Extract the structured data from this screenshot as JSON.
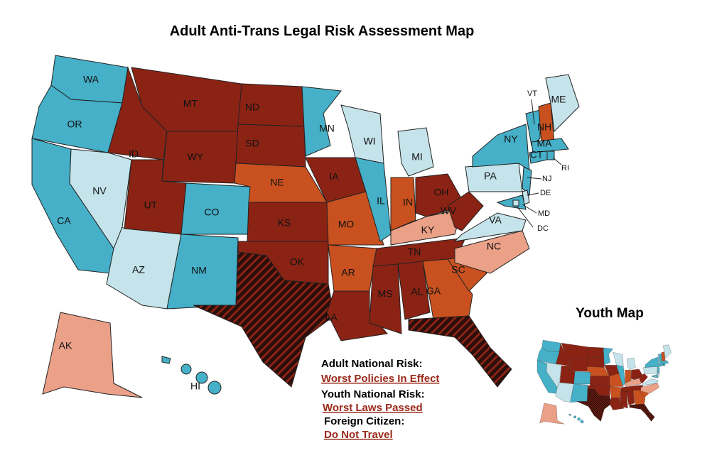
{
  "title": "Adult Anti-Trans Legal Risk Assessment Map",
  "states": [
    {
      "label": "WA",
      "color": "#45b0c8"
    },
    {
      "label": "OR",
      "color": "#45b0c8"
    },
    {
      "label": "CA",
      "color": "#45b0c8"
    },
    {
      "label": "NV",
      "color": "#c5e3ea"
    },
    {
      "label": "ID",
      "color": "#8b2315"
    },
    {
      "label": "MT",
      "color": "#8b2315"
    },
    {
      "label": "WY",
      "color": "#8b2315"
    },
    {
      "label": "UT",
      "color": "#8b2315"
    },
    {
      "label": "CO",
      "color": "#45b0c8"
    },
    {
      "label": "AZ",
      "color": "#c5e3ea"
    },
    {
      "label": "NM",
      "color": "#45b0c8"
    },
    {
      "label": "ND",
      "color": "#8b2315"
    },
    {
      "label": "SD",
      "color": "#8b2315"
    },
    {
      "label": "NE",
      "color": "#c9511f"
    },
    {
      "label": "KS",
      "color": "#8b2315"
    },
    {
      "label": "OK",
      "color": "#8b2315"
    },
    {
      "label": null,
      "color": "#2a0f0a",
      "hatched": true
    },
    {
      "label": "MN",
      "color": "#45b0c8"
    },
    {
      "label": "IA",
      "color": "#8b2315"
    },
    {
      "label": "MO",
      "color": "#c9511f"
    },
    {
      "label": "AR",
      "color": "#c9511f"
    },
    {
      "label": "LA",
      "color": "#8b2315"
    },
    {
      "label": "WI",
      "color": "#c5e3ea"
    },
    {
      "label": "IL",
      "color": "#45b0c8"
    },
    {
      "label": "MI",
      "color": "#c5e3ea"
    },
    {
      "label": "IN",
      "color": "#c9511f"
    },
    {
      "label": "OH",
      "color": "#8b2315"
    },
    {
      "label": "KY",
      "color": "#eba088"
    },
    {
      "label": "TN",
      "color": "#8b2315"
    },
    {
      "label": "MS",
      "color": "#8b2315"
    },
    {
      "label": "AL",
      "color": "#8b2315"
    },
    {
      "label": "GA",
      "color": "#c9511f"
    },
    {
      "label": null,
      "color": "#2a0f0a",
      "hatched": true
    },
    {
      "label": "SC",
      "color": "#c9511f"
    },
    {
      "label": "NC",
      "color": "#eba088"
    },
    {
      "label": "VA",
      "color": "#c5e3ea"
    },
    {
      "label": "WV",
      "color": "#8b2315"
    },
    {
      "label": "PA",
      "color": "#c5e3ea"
    },
    {
      "label": "NY",
      "color": "#45b0c8"
    },
    {
      "label": "VT",
      "color": "#45b0c8"
    },
    {
      "label": "NH",
      "color": "#c9511f"
    },
    {
      "label": "ME",
      "color": "#c5e3ea"
    },
    {
      "label": "MA",
      "color": "#45b0c8"
    },
    {
      "label": "CT",
      "color": "#45b0c8"
    },
    {
      "label": "RI",
      "color": "#45b0c8"
    },
    {
      "label": "NJ",
      "color": "#45b0c8"
    },
    {
      "label": "DE",
      "color": "#c5e3ea"
    },
    {
      "label": "MD",
      "color": "#45b0c8"
    },
    {
      "label": "AK",
      "color": "#eba088"
    },
    {
      "label": "HI",
      "color": "#45b0c8"
    },
    {
      "label": "DC",
      "color": "#c5e3ea"
    }
  ],
  "legend": {
    "adult_heading": "Adult National Risk:",
    "adult_value": "Worst Policies In Effect",
    "youth_heading": "Youth National Risk:",
    "youth_value": "Worst Laws Passed",
    "foreign_heading": "Foreign Citizen:",
    "foreign_value": "Do Not Travel"
  },
  "youth_map_title": "Youth Map"
}
